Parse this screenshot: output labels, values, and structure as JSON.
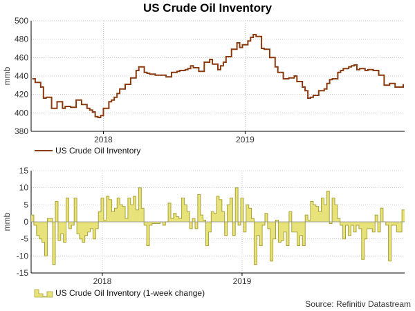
{
  "title": "US Crude Oil Inventory",
  "source": "Source: Refinitiv Datastream",
  "colors": {
    "level_line": "#8b3a0f",
    "change_fill": "#e8e27a",
    "change_stroke": "#a9a235"
  },
  "chart_data": [
    {
      "type": "line",
      "ylabel": "mmb",
      "ylim": [
        380,
        500
      ],
      "yticks": [
        380,
        400,
        420,
        440,
        460,
        480,
        500
      ],
      "xticks": [
        {
          "label": "2018",
          "index": 26
        },
        {
          "label": "2019",
          "index": 78
        }
      ],
      "grid": true,
      "legend_position": "bottom-left",
      "series": [
        {
          "name": "US Crude Oil Inventory",
          "values": [
            437,
            433,
            433,
            428,
            416,
            417,
            417,
            405,
            405,
            412,
            412,
            405,
            407,
            407,
            406,
            406,
            414,
            414,
            409,
            409,
            405,
            403,
            401,
            396,
            395,
            397,
            405,
            405,
            412,
            414,
            417,
            421,
            426,
            426,
            431,
            431,
            438,
            438,
            446,
            450,
            450,
            444,
            443,
            442,
            442,
            441,
            441,
            441,
            441,
            439,
            439,
            444,
            444,
            445,
            446,
            446,
            447,
            448,
            451,
            449,
            449,
            445,
            445,
            455,
            455,
            458,
            453,
            453,
            447,
            451,
            455,
            461,
            461,
            469,
            469,
            476,
            471,
            474,
            474,
            478,
            482,
            485,
            483,
            483,
            470,
            469,
            469,
            460,
            460,
            450,
            444,
            444,
            437,
            437,
            438,
            438,
            440,
            434,
            434,
            428,
            424,
            416,
            417,
            419,
            419,
            424,
            424,
            426,
            432,
            436,
            437,
            437,
            444,
            446,
            448,
            448,
            450,
            451,
            452,
            447,
            448,
            448,
            446,
            447,
            447,
            446,
            446,
            441,
            441,
            430,
            430,
            432,
            432,
            428,
            428,
            428,
            431
          ]
        }
      ]
    },
    {
      "type": "area",
      "ylabel": "mmb",
      "ylim": [
        -15,
        15
      ],
      "yticks": [
        -15,
        -10,
        -5,
        0,
        5,
        10,
        15
      ],
      "xticks": [
        {
          "label": "2018",
          "index": 26
        },
        {
          "label": "2019",
          "index": 78
        }
      ],
      "grid": true,
      "legend_position": "bottom-left",
      "series": [
        {
          "name": "US Crude Oil Inventory (1-week change)",
          "values": [
            2,
            -1,
            -4,
            -5,
            -6,
            -10,
            1,
            1,
            -12.5,
            6,
            -5.5,
            -3.5,
            -6,
            7,
            -2,
            -1,
            7,
            -3.5,
            -5,
            -6,
            -4,
            -3,
            -2,
            -5,
            -2,
            3,
            7,
            0.5,
            7.5,
            6.5,
            3,
            4,
            7,
            5,
            4.5,
            1,
            7,
            5,
            7.5,
            3.5,
            10,
            4,
            -1,
            -7,
            -1,
            -0.5,
            -0.5,
            -0.5,
            0,
            -1,
            0,
            5.5,
            1,
            2.5,
            1.5,
            1,
            7,
            5,
            3,
            -2,
            1,
            -2,
            8,
            2,
            0.5,
            -7,
            -3,
            3,
            2.5,
            7.5,
            6.5,
            3,
            -4,
            5,
            7,
            -4,
            10,
            -1,
            7,
            -3,
            5,
            4,
            1,
            -12.5,
            -4,
            -7,
            -1,
            2.5,
            -2,
            -11.5,
            -5,
            0.5,
            -6,
            -5.5,
            -3,
            -7,
            3,
            -3,
            -3,
            -7,
            -4,
            -7,
            2,
            0.5,
            6,
            5,
            4.5,
            3,
            7,
            5,
            9,
            -0.5,
            7,
            5,
            1,
            -1,
            -5,
            -1,
            -4,
            -1,
            -3,
            -1,
            -2,
            -11,
            -5,
            -2,
            -2,
            -3,
            2,
            -3,
            4,
            0,
            -1,
            -11.5,
            -1,
            -1,
            -3,
            -3,
            3.5
          ]
        }
      ]
    }
  ]
}
